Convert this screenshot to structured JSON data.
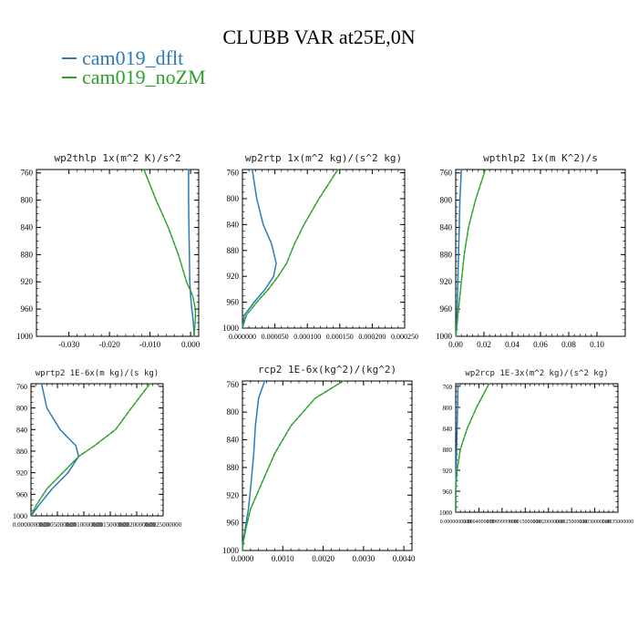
{
  "figure": {
    "title": "CLUBB VAR at25E,0N",
    "colors": {
      "dflt": "#2b7bba",
      "noZM": "#2ca02c"
    }
  },
  "legend": [
    {
      "label": "cam019_dflt",
      "color": "#2b7bba"
    },
    {
      "label": "cam019_noZM",
      "color": "#2ca02c"
    }
  ],
  "chart_data": [
    {
      "type": "line",
      "title": "wp2thlp  1x(m^2 K)/s^2",
      "xlim": [
        -0.038,
        0.002
      ],
      "ylim": [
        1000,
        755
      ],
      "xticks": [
        -0.03,
        -0.02,
        -0.01,
        0.0
      ],
      "xticklabels": [
        "-0.030",
        "-0.020",
        "-0.010",
        "0.000"
      ],
      "yticks": [
        760,
        800,
        840,
        880,
        920,
        960,
        1000
      ],
      "yticklabels": [
        "760",
        "800",
        "840",
        "880",
        "920",
        "960",
        "1000"
      ],
      "series": [
        {
          "name": "cam019_dflt",
          "color": "#2b7bba",
          "x": [
            -0.0005,
            -0.0005,
            -0.0004,
            -0.0003,
            -0.0002,
            0.0,
            0.0003,
            0.0006,
            0.0008,
            0.0009
          ],
          "y": [
            755,
            800,
            840,
            880,
            920,
            940,
            960,
            975,
            990,
            1000
          ]
        },
        {
          "name": "cam019_noZM",
          "color": "#2ca02c",
          "x": [
            -0.0115,
            -0.0085,
            -0.0055,
            -0.003,
            -0.001,
            0.0005,
            0.0012,
            0.0012,
            0.001,
            0.0008
          ],
          "y": [
            755,
            800,
            840,
            880,
            920,
            940,
            960,
            975,
            990,
            1000
          ]
        }
      ]
    },
    {
      "type": "line",
      "title": "wp2rtp  1x(m^2 kg)/(s^2 kg)",
      "xlim": [
        0,
        0.00025
      ],
      "ylim": [
        1000,
        755
      ],
      "xticks": [
        0,
        5e-05,
        0.0001,
        0.00015,
        0.0002,
        0.00025
      ],
      "xticklabels": [
        "0.000000",
        "0.000050",
        "0.000100",
        "0.000150",
        "0.000200",
        "0.000250"
      ],
      "yticks": [
        760,
        800,
        840,
        880,
        920,
        960,
        1000
      ],
      "yticklabels": [
        "760",
        "800",
        "840",
        "880",
        "920",
        "960",
        "1000"
      ],
      "series": [
        {
          "name": "cam019_dflt",
          "color": "#2b7bba",
          "x": [
            1.5e-05,
            2.2e-05,
            3.2e-05,
            4.5e-05,
            5.2e-05,
            4.8e-05,
            3.5e-05,
            1.8e-05,
            3e-06,
            0.0
          ],
          "y": [
            755,
            800,
            840,
            870,
            900,
            920,
            940,
            960,
            980,
            1000
          ]
        },
        {
          "name": "cam019_noZM",
          "color": "#2ca02c",
          "x": [
            0.000147,
            0.000118,
            9.5e-05,
            8e-05,
            6.8e-05,
            5.5e-05,
            4e-05,
            2.2e-05,
            6e-06,
            0.0
          ],
          "y": [
            755,
            800,
            840,
            870,
            900,
            920,
            940,
            960,
            980,
            1000
          ]
        }
      ]
    },
    {
      "type": "line",
      "title": "wpthlp2  1x(m K^2)/s",
      "xlim": [
        0,
        0.12
      ],
      "ylim": [
        1000,
        755
      ],
      "xticks": [
        0,
        0.02,
        0.04,
        0.06,
        0.08,
        0.1
      ],
      "xticklabels": [
        "0.00",
        "0.02",
        "0.04",
        "0.06",
        "0.08",
        "0.10"
      ],
      "yticks": [
        760,
        800,
        840,
        880,
        920,
        960,
        1000
      ],
      "yticklabels": [
        "760",
        "800",
        "840",
        "880",
        "920",
        "960",
        "1000"
      ],
      "series": [
        {
          "name": "cam019_dflt",
          "color": "#2b7bba",
          "x": [
            0.004,
            0.003,
            0.0025,
            0.002,
            0.0015,
            0.001,
            0.0006,
            0.0002
          ],
          "y": [
            755,
            800,
            840,
            880,
            920,
            960,
            980,
            1000
          ]
        },
        {
          "name": "cam019_noZM",
          "color": "#2ca02c",
          "x": [
            0.021,
            0.014,
            0.009,
            0.006,
            0.004,
            0.002,
            0.001,
            0.0002
          ],
          "y": [
            755,
            800,
            840,
            880,
            920,
            960,
            980,
            1000
          ]
        }
      ]
    },
    {
      "type": "line",
      "title": "wprtp2  1E-6x(m kg)/(s kg)",
      "xlim": [
        0,
        0.0025
      ],
      "ylim": [
        1000,
        755
      ],
      "xticks": [
        0,
        0.0005,
        0.001,
        0.0015,
        0.002,
        0.0025
      ],
      "xticklabels": [
        "0.0000000000",
        "0.0005000000",
        "0.0010000000",
        "0.0015000000",
        "0.0020000000",
        "0.0025000000"
      ],
      "yticks": [
        760,
        800,
        840,
        880,
        920,
        960,
        1000
      ],
      "yticklabels": [
        "760",
        "800",
        "840",
        "880",
        "920",
        "960",
        "1000"
      ],
      "series": [
        {
          "name": "cam019_dflt",
          "color": "#2b7bba",
          "x": [
            0.0002,
            0.0003,
            0.00055,
            0.00085,
            0.0009,
            0.0007,
            0.0004,
            0.00015,
            0.0
          ],
          "y": [
            755,
            800,
            840,
            870,
            890,
            920,
            950,
            980,
            1000
          ]
        },
        {
          "name": "cam019_noZM",
          "color": "#2ca02c",
          "x": [
            0.00225,
            0.0019,
            0.0016,
            0.0012,
            0.0009,
            0.0006,
            0.0003,
            0.0001,
            0.0
          ],
          "y": [
            755,
            800,
            840,
            870,
            890,
            920,
            950,
            980,
            1000
          ]
        }
      ]
    },
    {
      "type": "line",
      "title": "rcp2  1E-6x(kg^2)/(kg^2)",
      "xlim": [
        0,
        0.0042
      ],
      "ylim": [
        1000,
        755
      ],
      "xticks": [
        0,
        0.001,
        0.002,
        0.003,
        0.004
      ],
      "xticklabels": [
        "0.0000",
        "0.0010",
        "0.0020",
        "0.0030",
        "0.0040"
      ],
      "yticks": [
        760,
        800,
        840,
        880,
        920,
        960,
        1000
      ],
      "yticklabels": [
        "760",
        "800",
        "840",
        "880",
        "920",
        "960",
        "1000"
      ],
      "series": [
        {
          "name": "cam019_dflt",
          "color": "#2b7bba",
          "x": [
            0.00055,
            0.0004,
            0.00032,
            0.00028,
            0.00022,
            0.00015,
            8e-05,
            2e-05,
            0.0
          ],
          "y": [
            755,
            780,
            820,
            860,
            900,
            940,
            965,
            985,
            1000
          ]
        },
        {
          "name": "cam019_noZM",
          "color": "#2ca02c",
          "x": [
            0.0025,
            0.0018,
            0.0012,
            0.0008,
            0.0005,
            0.0002,
            0.0001,
            3e-05,
            0.0
          ],
          "y": [
            755,
            780,
            820,
            860,
            900,
            940,
            965,
            985,
            1000
          ]
        }
      ]
    },
    {
      "type": "line",
      "title": "wp2rcp  1E-3x(m^2 kg)/(s^2 kg)",
      "xlim": [
        0,
        0.0035
      ],
      "ylim": [
        1000,
        755
      ],
      "xticks": [
        0,
        0.0005,
        0.001,
        0.0015,
        0.002,
        0.0025,
        0.003,
        0.0035
      ],
      "xticklabels": [
        "0.0000000000",
        "0.0004999999",
        "0.0009999999",
        "0.0015000000",
        "0.0020000000",
        "0.0025000000",
        "0.0030000000",
        "0.0035000000"
      ],
      "yticks": [
        760,
        800,
        840,
        880,
        920,
        960,
        1000
      ],
      "yticklabels": [
        "760",
        "800",
        "840",
        "880",
        "920",
        "960",
        "1000"
      ],
      "series": [
        {
          "name": "cam019_dflt",
          "color": "#2b7bba",
          "x": [
            5e-05,
            4e-05,
            3e-05,
            2e-05,
            1e-05,
            0.0,
            0.0
          ],
          "y": [
            755,
            800,
            840,
            880,
            920,
            960,
            1000
          ]
        },
        {
          "name": "cam019_noZM",
          "color": "#2ca02c",
          "x": [
            0.00072,
            0.00045,
            0.00025,
            0.0001,
            3e-05,
            0.0,
            0.0
          ],
          "y": [
            755,
            800,
            840,
            880,
            920,
            960,
            1000
          ]
        }
      ]
    }
  ]
}
